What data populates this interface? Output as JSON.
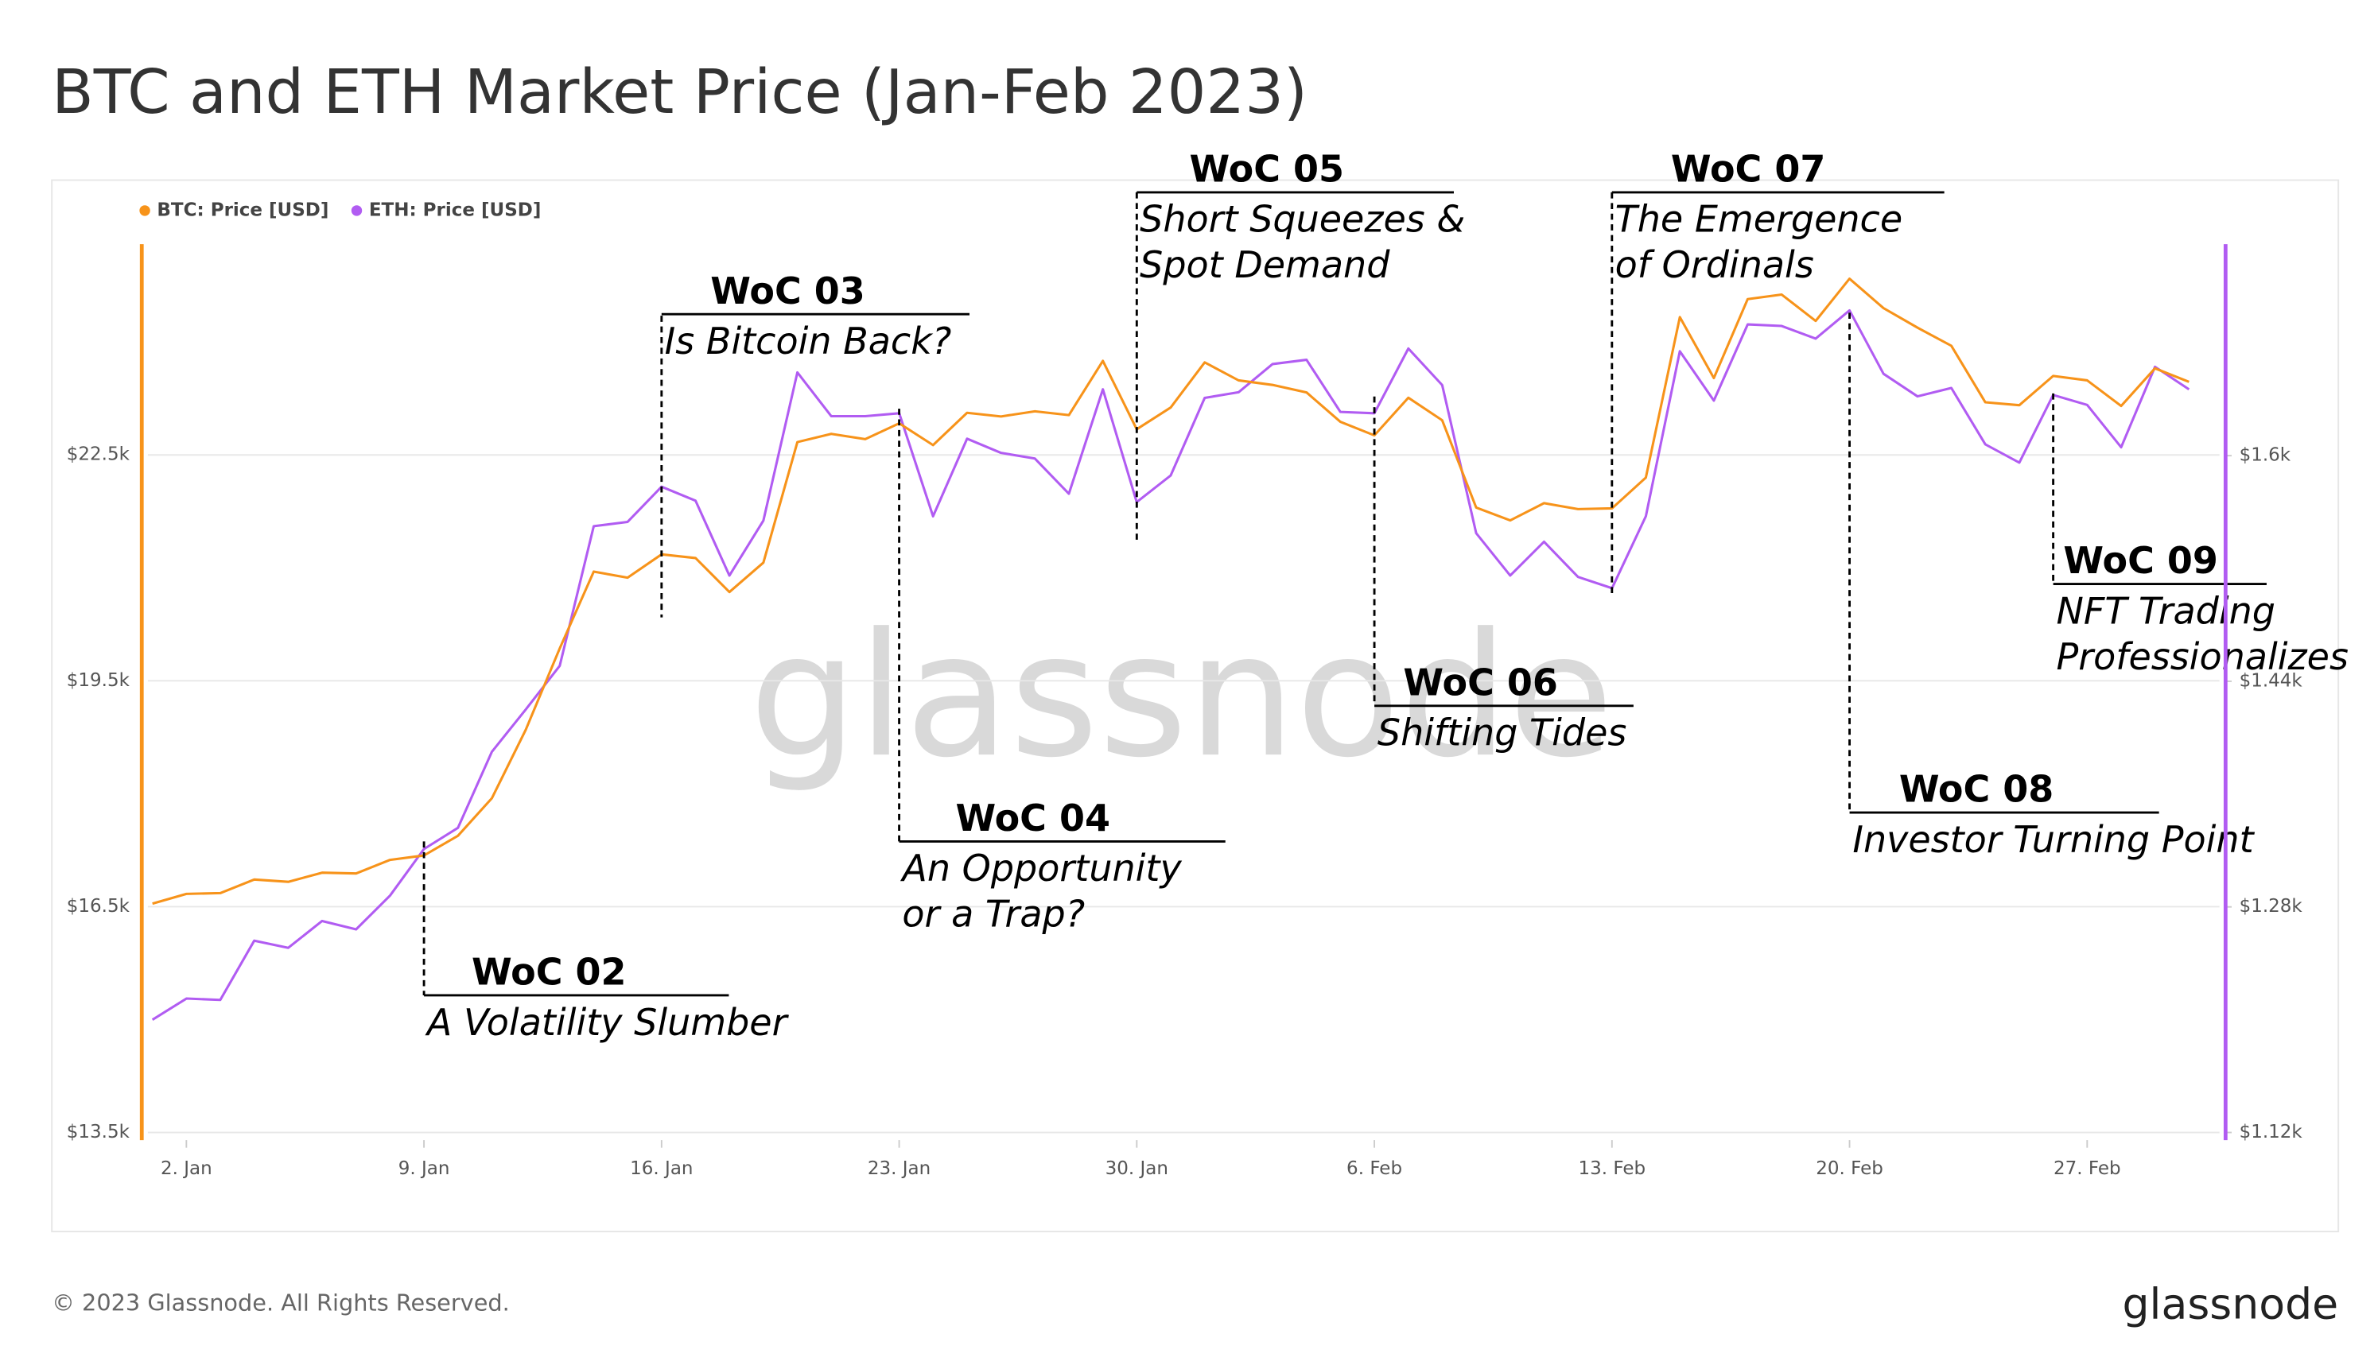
{
  "chart_data": {
    "type": "line",
    "title": "BTC and ETH Market Price (Jan-Feb 2023)",
    "watermark": "glassnode",
    "footer": "© 2023 Glassnode. All Rights Reserved.",
    "brand": "glassnode",
    "x": [
      "2023-01-01",
      "2023-01-02",
      "2023-01-03",
      "2023-01-04",
      "2023-01-05",
      "2023-01-06",
      "2023-01-07",
      "2023-01-08",
      "2023-01-09",
      "2023-01-10",
      "2023-01-11",
      "2023-01-12",
      "2023-01-13",
      "2023-01-14",
      "2023-01-15",
      "2023-01-16",
      "2023-01-17",
      "2023-01-18",
      "2023-01-19",
      "2023-01-20",
      "2023-01-21",
      "2023-01-22",
      "2023-01-23",
      "2023-01-24",
      "2023-01-25",
      "2023-01-26",
      "2023-01-27",
      "2023-01-28",
      "2023-01-29",
      "2023-01-30",
      "2023-01-31",
      "2023-02-01",
      "2023-02-02",
      "2023-02-03",
      "2023-02-04",
      "2023-02-05",
      "2023-02-06",
      "2023-02-07",
      "2023-02-08",
      "2023-02-09",
      "2023-02-10",
      "2023-02-11",
      "2023-02-12",
      "2023-02-13",
      "2023-02-14",
      "2023-02-15",
      "2023-02-16",
      "2023-02-17",
      "2023-02-18",
      "2023-02-19",
      "2023-02-20",
      "2023-02-21",
      "2023-02-22",
      "2023-02-23",
      "2023-02-24",
      "2023-02-25",
      "2023-02-26",
      "2023-02-27",
      "2023-02-28",
      "2023-03-01",
      "2023-03-02"
    ],
    "series": [
      {
        "name": "BTC: Price [USD]",
        "color": "#f7931a",
        "values": [
          16540,
          16670,
          16680,
          16860,
          16830,
          16950,
          16940,
          17120,
          17180,
          17440,
          17940,
          18850,
          19930,
          20950,
          20870,
          21180,
          21130,
          20680,
          21070,
          22670,
          22780,
          22710,
          22920,
          22630,
          23060,
          23010,
          23080,
          23030,
          23750,
          22840,
          23130,
          23730,
          23490,
          23430,
          23330,
          22940,
          22760,
          23260,
          22960,
          21800,
          21630,
          21860,
          21780,
          21790,
          22200,
          24330,
          23520,
          24570,
          24630,
          24280,
          24840,
          24450,
          24190,
          23950,
          23200,
          23160,
          23550,
          23490,
          23150,
          23650,
          23470
        ]
      },
      {
        "name": "ETH: Price [USD]",
        "color": "#b15cf2",
        "axis": "y2",
        "values": [
          1200,
          1215,
          1214,
          1256,
          1251,
          1270,
          1264,
          1288,
          1321,
          1336,
          1390,
          1420,
          1451,
          1550,
          1553,
          1578,
          1568,
          1515,
          1554,
          1659,
          1628,
          1628,
          1630,
          1557,
          1612,
          1602,
          1598,
          1573,
          1647,
          1567,
          1586,
          1641,
          1645,
          1665,
          1668,
          1631,
          1630,
          1676,
          1650,
          1545,
          1515,
          1539,
          1514,
          1506,
          1557,
          1674,
          1639,
          1693,
          1692,
          1683,
          1703,
          1658,
          1642,
          1648,
          1608,
          1595,
          1643,
          1636,
          1606,
          1663,
          1647
        ]
      }
    ],
    "xlim": [
      "2023-01-01",
      "2023-03-02"
    ],
    "xticks": [
      {
        "value": "2023-01-02",
        "label": "2. Jan"
      },
      {
        "value": "2023-01-09",
        "label": "9. Jan"
      },
      {
        "value": "2023-01-16",
        "label": "16. Jan"
      },
      {
        "value": "2023-01-23",
        "label": "23. Jan"
      },
      {
        "value": "2023-01-30",
        "label": "30. Jan"
      },
      {
        "value": "2023-02-06",
        "label": "6. Feb"
      },
      {
        "value": "2023-02-13",
        "label": "13. Feb"
      },
      {
        "value": "2023-02-20",
        "label": "20. Feb"
      },
      {
        "value": "2023-02-27",
        "label": "27. Feb"
      }
    ],
    "ylim": [
      13500,
      25300
    ],
    "yticks": [
      {
        "value": 13500,
        "label": "$13.5k"
      },
      {
        "value": 16500,
        "label": "$16.5k"
      },
      {
        "value": 19500,
        "label": "$19.5k"
      },
      {
        "value": 22500,
        "label": "$22.5k"
      }
    ],
    "y2lim": [
      1120,
      1750
    ],
    "y2ticks": [
      {
        "value": 1120,
        "label": "$1.12k"
      },
      {
        "value": 1280,
        "label": "$1.28k"
      },
      {
        "value": 1440,
        "label": "$1.44k"
      },
      {
        "value": 1600,
        "label": "$1.6k"
      }
    ],
    "grid": true,
    "legend": "top-left",
    "annotations": [
      {
        "x": "2023-01-09",
        "title": "WoC 02",
        "lines": [
          "A Volatility Slumber"
        ]
      },
      {
        "x": "2023-01-16",
        "title": "WoC 03",
        "lines": [
          "Is Bitcoin Back?"
        ]
      },
      {
        "x": "2023-01-23",
        "title": "WoC 04",
        "lines": [
          "An Opportunity",
          "or a Trap?"
        ]
      },
      {
        "x": "2023-01-30",
        "title": "WoC 05",
        "lines": [
          "Short Squeezes &",
          "Spot Demand"
        ]
      },
      {
        "x": "2023-02-06",
        "title": "WoC 06",
        "lines": [
          "Shifting Tides"
        ]
      },
      {
        "x": "2023-02-13",
        "title": "WoC 07",
        "lines": [
          "The Emergence",
          "of Ordinals"
        ]
      },
      {
        "x": "2023-02-20",
        "title": "WoC 08",
        "lines": [
          "Investor Turning Point"
        ]
      },
      {
        "x": "2023-02-26",
        "title": "WoC 09",
        "lines": [
          "NFT Trading",
          "Professionalizes"
        ]
      }
    ]
  }
}
